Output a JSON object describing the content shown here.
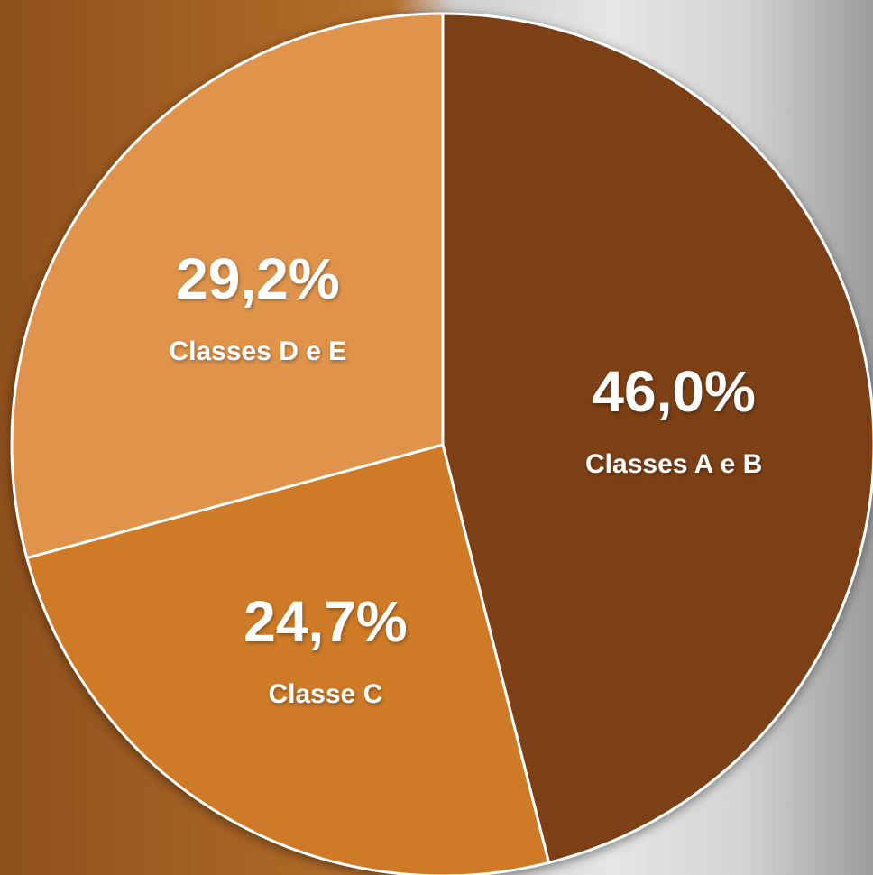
{
  "chart_data": {
    "type": "pie",
    "categories": [
      "Classes A e B",
      "Classe C",
      "Classes D e E"
    ],
    "values": [
      46.0,
      24.7,
      29.2
    ],
    "value_labels": [
      "46,0%",
      "24,7%",
      "29,2%"
    ],
    "colors": [
      "#7d3f17",
      "#cf7a27",
      "#e0944c"
    ]
  }
}
